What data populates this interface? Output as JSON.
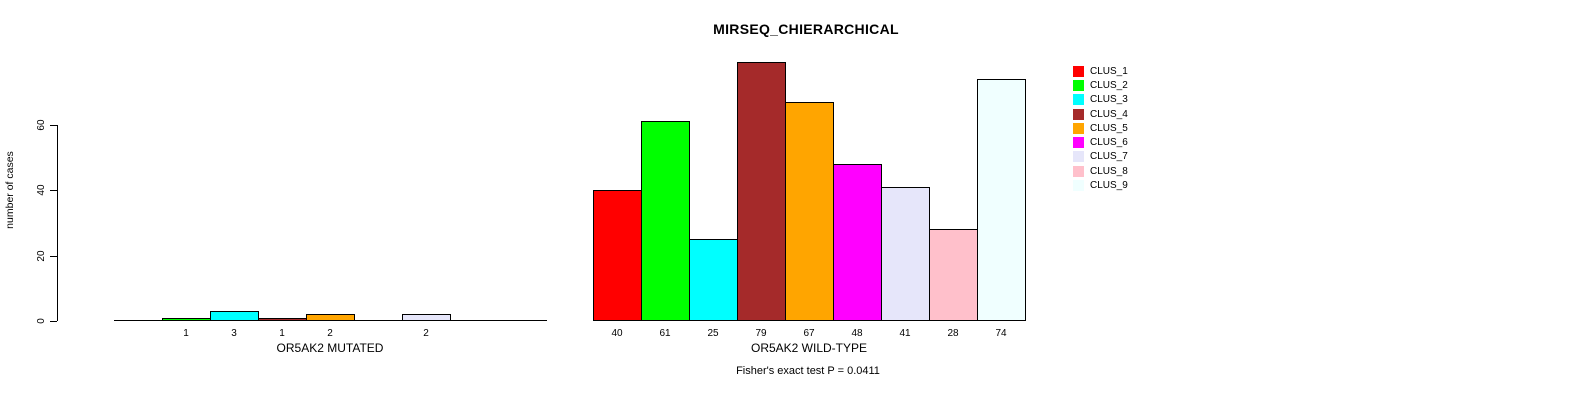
{
  "chart_data": {
    "type": "bar",
    "title": "MIRSEQ_CHIERARCHICAL",
    "ylabel": "number of cases",
    "footnote": "Fisher's exact test P = 0.0411",
    "y_ticks": [
      0,
      20,
      40,
      60
    ],
    "ylim": [
      0,
      80
    ],
    "grid": false,
    "legend_position": "right",
    "legend": [
      {
        "label": "CLUS_1",
        "color": "#FF0000"
      },
      {
        "label": "CLUS_2",
        "color": "#00FF00"
      },
      {
        "label": "CLUS_3",
        "color": "#00FFFF"
      },
      {
        "label": "CLUS_4",
        "color": "#A52A2A"
      },
      {
        "label": "CLUS_5",
        "color": "#FFA500"
      },
      {
        "label": "CLUS_6",
        "color": "#FF00FF"
      },
      {
        "label": "CLUS_7",
        "color": "#E6E6FA"
      },
      {
        "label": "CLUS_8",
        "color": "#FFC0CB"
      },
      {
        "label": "CLUS_9",
        "color": "#F0FFFF"
      }
    ],
    "categories": [
      "CLUS_1",
      "CLUS_2",
      "CLUS_3",
      "CLUS_4",
      "CLUS_5",
      "CLUS_6",
      "CLUS_7",
      "CLUS_8",
      "CLUS_9"
    ],
    "groups": [
      {
        "label": "OR5AK2 MUTATED",
        "values": [
          0,
          1,
          3,
          1,
          2,
          0,
          2,
          0,
          0
        ],
        "bar_labels": [
          "",
          "1",
          "3",
          "1",
          "2",
          "",
          "2",
          "",
          ""
        ]
      },
      {
        "label": "OR5AK2 WILD-TYPE",
        "values": [
          40,
          61,
          25,
          79,
          67,
          48,
          41,
          28,
          74
        ],
        "bar_labels": [
          "40",
          "61",
          "25",
          "79",
          "67",
          "48",
          "41",
          "28",
          "74"
        ]
      }
    ]
  }
}
